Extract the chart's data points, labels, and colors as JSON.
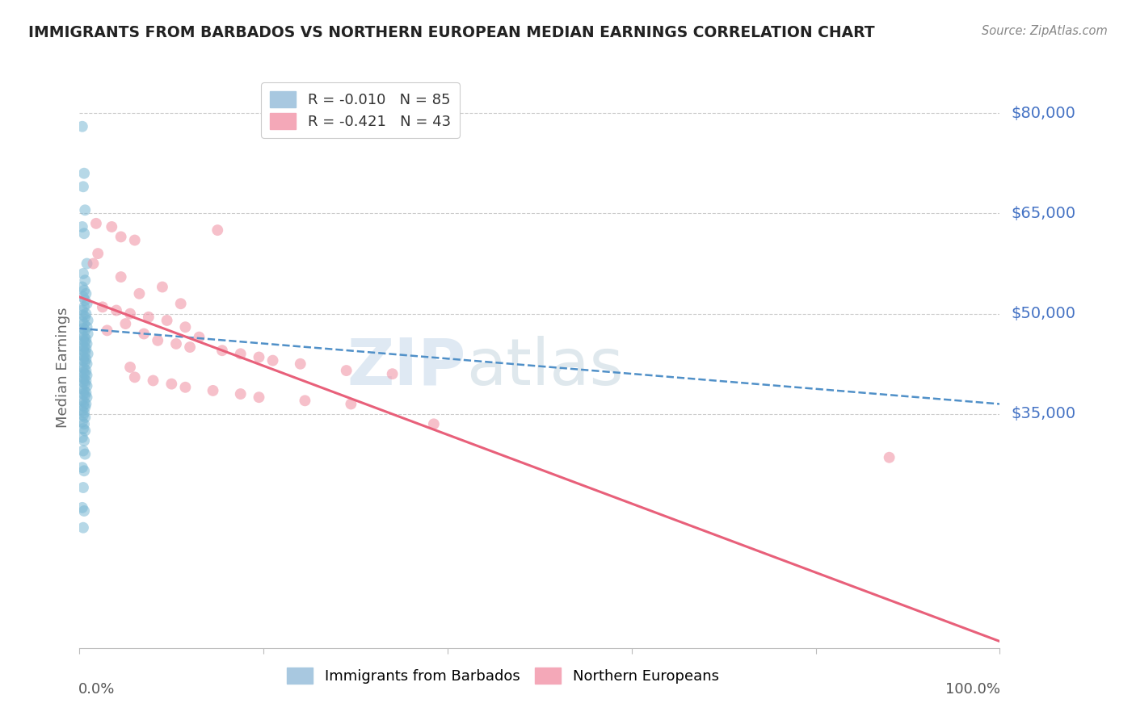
{
  "title": "IMMIGRANTS FROM BARBADOS VS NORTHERN EUROPEAN MEDIAN EARNINGS CORRELATION CHART",
  "source": "Source: ZipAtlas.com",
  "ylabel": "Median Earnings",
  "y_ticks": [
    35000,
    50000,
    65000,
    80000
  ],
  "y_tick_labels": [
    "$35,000",
    "$50,000",
    "$65,000",
    "$80,000"
  ],
  "y_min": 0,
  "y_max": 84000,
  "x_min": 0.0,
  "x_max": 1.0,
  "legend_labels_bottom": [
    "Immigrants from Barbados",
    "Northern Europeans"
  ],
  "barbados_color": "#7bb8d4",
  "northern_color": "#f096a8",
  "barbados_line_color": "#5090c8",
  "northern_line_color": "#e8607a",
  "watermark_zip": "ZIP",
  "watermark_atlas": "atlas",
  "barbados_scatter": [
    [
      0.003,
      78000
    ],
    [
      0.005,
      71000
    ],
    [
      0.004,
      69000
    ],
    [
      0.006,
      65500
    ],
    [
      0.003,
      63000
    ],
    [
      0.005,
      62000
    ],
    [
      0.008,
      57500
    ],
    [
      0.004,
      56000
    ],
    [
      0.006,
      55000
    ],
    [
      0.003,
      54000
    ],
    [
      0.005,
      53500
    ],
    [
      0.007,
      53000
    ],
    [
      0.004,
      52500
    ],
    [
      0.006,
      52000
    ],
    [
      0.008,
      51500
    ],
    [
      0.005,
      51000
    ],
    [
      0.003,
      50500
    ],
    [
      0.007,
      50000
    ],
    [
      0.004,
      49800
    ],
    [
      0.006,
      49500
    ],
    [
      0.009,
      49000
    ],
    [
      0.003,
      48800
    ],
    [
      0.005,
      48500
    ],
    [
      0.008,
      48000
    ],
    [
      0.004,
      47800
    ],
    [
      0.006,
      47500
    ],
    [
      0.009,
      47000
    ],
    [
      0.003,
      46800
    ],
    [
      0.005,
      46500
    ],
    [
      0.007,
      46200
    ],
    [
      0.004,
      46000
    ],
    [
      0.006,
      45800
    ],
    [
      0.008,
      45500
    ],
    [
      0.003,
      45200
    ],
    [
      0.005,
      45000
    ],
    [
      0.007,
      44800
    ],
    [
      0.004,
      44500
    ],
    [
      0.006,
      44200
    ],
    [
      0.009,
      44000
    ],
    [
      0.003,
      43800
    ],
    [
      0.005,
      43500
    ],
    [
      0.007,
      43200
    ],
    [
      0.004,
      43000
    ],
    [
      0.006,
      42800
    ],
    [
      0.008,
      42500
    ],
    [
      0.003,
      42000
    ],
    [
      0.005,
      41800
    ],
    [
      0.007,
      41500
    ],
    [
      0.004,
      41200
    ],
    [
      0.006,
      41000
    ],
    [
      0.008,
      40800
    ],
    [
      0.003,
      40500
    ],
    [
      0.005,
      40200
    ],
    [
      0.007,
      40000
    ],
    [
      0.004,
      39800
    ],
    [
      0.006,
      39500
    ],
    [
      0.008,
      39200
    ],
    [
      0.003,
      38800
    ],
    [
      0.005,
      38500
    ],
    [
      0.007,
      38200
    ],
    [
      0.004,
      38000
    ],
    [
      0.006,
      37800
    ],
    [
      0.008,
      37500
    ],
    [
      0.003,
      37000
    ],
    [
      0.005,
      36800
    ],
    [
      0.007,
      36500
    ],
    [
      0.004,
      36200
    ],
    [
      0.006,
      36000
    ],
    [
      0.003,
      35500
    ],
    [
      0.005,
      35200
    ],
    [
      0.004,
      34800
    ],
    [
      0.006,
      34500
    ],
    [
      0.003,
      33800
    ],
    [
      0.005,
      33500
    ],
    [
      0.004,
      32800
    ],
    [
      0.006,
      32500
    ],
    [
      0.003,
      31500
    ],
    [
      0.005,
      31000
    ],
    [
      0.004,
      29500
    ],
    [
      0.006,
      29000
    ],
    [
      0.003,
      27000
    ],
    [
      0.005,
      26500
    ],
    [
      0.004,
      24000
    ],
    [
      0.003,
      21000
    ],
    [
      0.005,
      20500
    ],
    [
      0.004,
      18000
    ]
  ],
  "northern_scatter": [
    [
      0.018,
      63500
    ],
    [
      0.035,
      63000
    ],
    [
      0.045,
      61500
    ],
    [
      0.06,
      61000
    ],
    [
      0.02,
      59000
    ],
    [
      0.015,
      57500
    ],
    [
      0.15,
      62500
    ],
    [
      0.045,
      55500
    ],
    [
      0.09,
      54000
    ],
    [
      0.065,
      53000
    ],
    [
      0.11,
      51500
    ],
    [
      0.025,
      51000
    ],
    [
      0.04,
      50500
    ],
    [
      0.055,
      50000
    ],
    [
      0.075,
      49500
    ],
    [
      0.095,
      49000
    ],
    [
      0.05,
      48500
    ],
    [
      0.115,
      48000
    ],
    [
      0.03,
      47500
    ],
    [
      0.07,
      47000
    ],
    [
      0.13,
      46500
    ],
    [
      0.085,
      46000
    ],
    [
      0.105,
      45500
    ],
    [
      0.12,
      45000
    ],
    [
      0.155,
      44500
    ],
    [
      0.175,
      44000
    ],
    [
      0.195,
      43500
    ],
    [
      0.21,
      43000
    ],
    [
      0.24,
      42500
    ],
    [
      0.055,
      42000
    ],
    [
      0.29,
      41500
    ],
    [
      0.34,
      41000
    ],
    [
      0.06,
      40500
    ],
    [
      0.08,
      40000
    ],
    [
      0.1,
      39500
    ],
    [
      0.115,
      39000
    ],
    [
      0.145,
      38500
    ],
    [
      0.175,
      38000
    ],
    [
      0.195,
      37500
    ],
    [
      0.245,
      37000
    ],
    [
      0.295,
      36500
    ],
    [
      0.88,
      28500
    ],
    [
      0.385,
      33500
    ]
  ],
  "barbados_line": [
    [
      0.0,
      47800
    ],
    [
      1.0,
      36500
    ]
  ],
  "northern_line": [
    [
      0.0,
      52500
    ],
    [
      1.0,
      1000
    ]
  ],
  "bg_color": "#ffffff",
  "grid_color": "#cccccc",
  "title_color": "#222222",
  "tick_label_color": "#4472c4",
  "source_color": "#888888",
  "axis_color": "#bbbbbb"
}
